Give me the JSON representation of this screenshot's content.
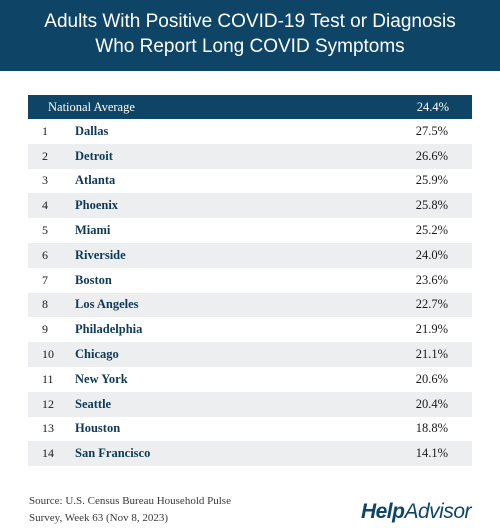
{
  "title": {
    "line1": "Adults With Positive COVID-19 Test or Diagnosis",
    "line2": "Who Report Long COVID Symptoms"
  },
  "chart_data": {
    "type": "table",
    "header": {
      "label": "National Average",
      "value": "24.4%"
    },
    "rows": [
      {
        "rank": "1",
        "city": "Dallas",
        "value": "27.5%"
      },
      {
        "rank": "2",
        "city": "Detroit",
        "value": "26.6%"
      },
      {
        "rank": "3",
        "city": "Atlanta",
        "value": "25.9%"
      },
      {
        "rank": "4",
        "city": "Phoenix",
        "value": "25.8%"
      },
      {
        "rank": "5",
        "city": "Miami",
        "value": "25.2%"
      },
      {
        "rank": "6",
        "city": "Riverside",
        "value": "24.0%"
      },
      {
        "rank": "7",
        "city": "Boston",
        "value": "23.6%"
      },
      {
        "rank": "8",
        "city": "Los Angeles",
        "value": "22.7%"
      },
      {
        "rank": "9",
        "city": "Philadelphia",
        "value": "21.9%"
      },
      {
        "rank": "10",
        "city": "Chicago",
        "value": "21.1%"
      },
      {
        "rank": "11",
        "city": "New York",
        "value": "20.6%"
      },
      {
        "rank": "12",
        "city": "Seattle",
        "value": "20.4%"
      },
      {
        "rank": "13",
        "city": "Houston",
        "value": "18.8%"
      },
      {
        "rank": "14",
        "city": "San Francisco",
        "value": "14.1%"
      }
    ]
  },
  "source": {
    "line1": "Source: U.S. Census Bureau Household Pulse",
    "line2": "Survey, Week 63 (Nov 8, 2023)"
  },
  "logo": {
    "help": "Help",
    "advisor": "Advisor"
  },
  "colors": {
    "brand": "#0e4566",
    "row_shade": "#eceeef",
    "city_text": "#0e3a57"
  }
}
